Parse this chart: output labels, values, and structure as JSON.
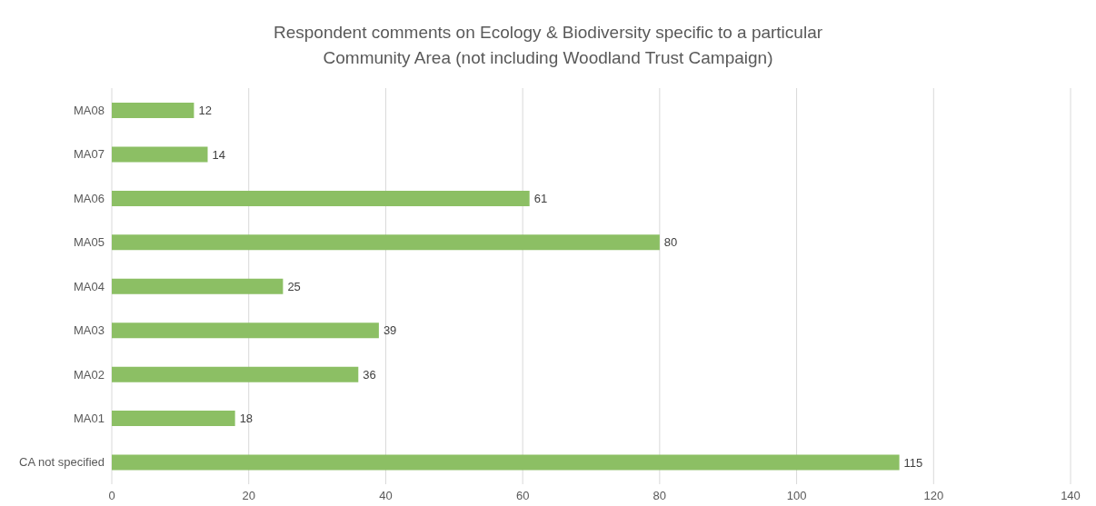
{
  "chart_data": {
    "type": "bar",
    "orientation": "horizontal",
    "title": "Respondent comments on Ecology & Biodiversity specific to a particular Community Area (not including Woodland Trust Campaign)",
    "categories": [
      "MA08",
      "MA07",
      "MA06",
      "MA05",
      "MA04",
      "MA03",
      "MA02",
      "MA01",
      "CA not specified"
    ],
    "values": [
      12,
      14,
      61,
      80,
      25,
      39,
      36,
      18,
      115
    ],
    "color": "#8cbf64",
    "xlim": [
      0,
      140
    ],
    "xticks": [
      0,
      20,
      40,
      60,
      80,
      100,
      120,
      140
    ],
    "grid": "x",
    "data_labels": true,
    "legend": false
  }
}
